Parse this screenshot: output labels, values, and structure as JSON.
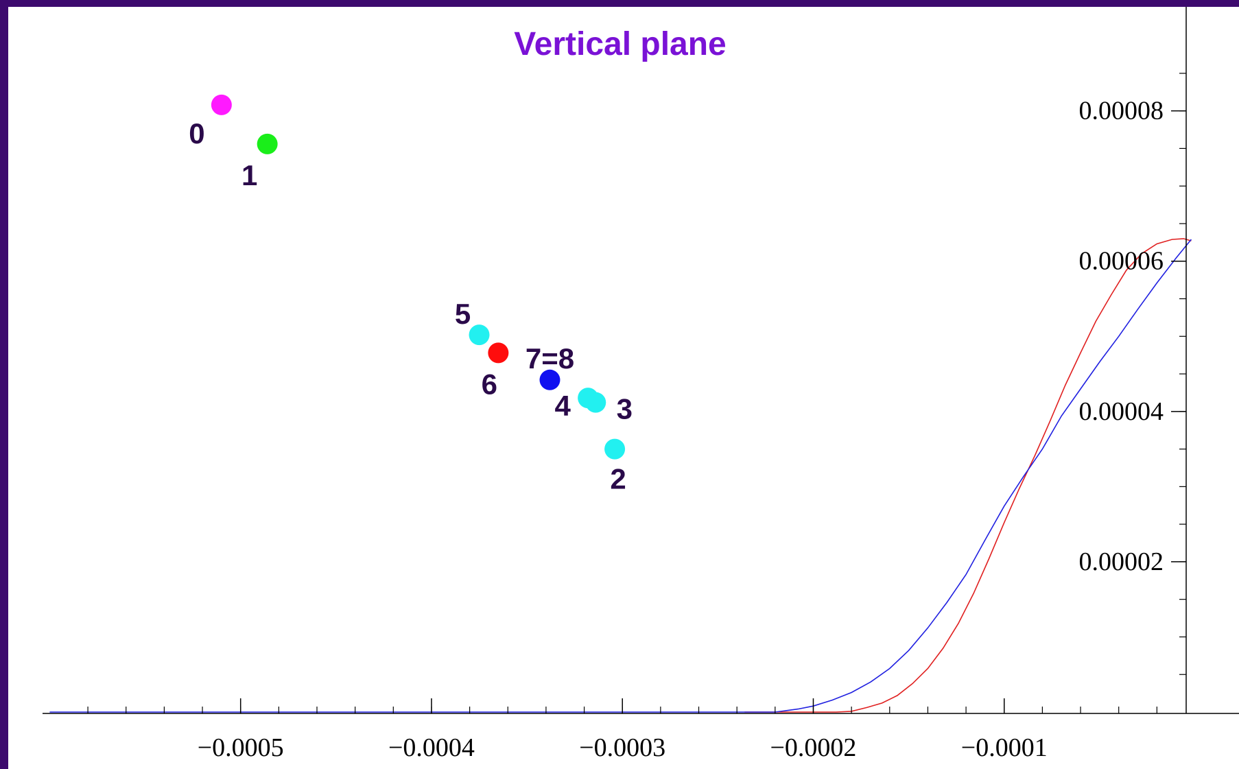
{
  "chart_data": {
    "type": "scatter",
    "title": "Vertical plane",
    "xlabel": "",
    "ylabel": "",
    "xlim": [
      -0.000598,
      -0.0
    ],
    "ylim": [
      0,
      8.8e-05
    ],
    "x_ticks": [
      {
        "value": -0.0005,
        "label": "−0.0005"
      },
      {
        "value": -0.0004,
        "label": "−0.0004"
      },
      {
        "value": -0.0003,
        "label": "−0.0003"
      },
      {
        "value": -0.0002,
        "label": "−0.0002"
      },
      {
        "value": -0.0001,
        "label": "−0.0001"
      }
    ],
    "y_ticks": [
      {
        "value": 2e-05,
        "label": "0.00002"
      },
      {
        "value": 4e-05,
        "label": "0.00004"
      },
      {
        "value": 6e-05,
        "label": "0.00006"
      },
      {
        "value": 8e-05,
        "label": "0.00008"
      }
    ],
    "points": [
      {
        "label": "0",
        "x": -0.00051,
        "y": 8.08e-05,
        "color": "#ff1aff",
        "label_dx": -36,
        "label_dy": 56
      },
      {
        "label": "1",
        "x": -0.000486,
        "y": 7.56e-05,
        "color": "#1aee1a",
        "label_dx": -26,
        "label_dy": 60
      },
      {
        "label": "2",
        "x": -0.000304,
        "y": 3.5e-05,
        "color": "#22f0f0",
        "label_dx": 5,
        "label_dy": 58
      },
      {
        "label": "3",
        "x": -0.000314,
        "y": 4.12e-05,
        "color": "#22f0f0",
        "label_dx": 42,
        "label_dy": 24
      },
      {
        "label": "4",
        "x": -0.000318,
        "y": 4.18e-05,
        "color": "#22f0f0",
        "label_dx": -37,
        "label_dy": 26
      },
      {
        "label": "5",
        "x": -0.000375,
        "y": 5.02e-05,
        "color": "#22f0f0",
        "label_dx": -24,
        "label_dy": -16
      },
      {
        "label": "6",
        "x": -0.000365,
        "y": 4.78e-05,
        "color": "#ff0d0d",
        "label_dx": -13,
        "label_dy": 60
      },
      {
        "label": "7=8",
        "x": -0.000338,
        "y": 4.42e-05,
        "color": "#1010f0",
        "label_dx": 0,
        "label_dy": -17
      }
    ],
    "series": [
      {
        "color": "#e02020",
        "x": [
          -0.000236,
          -0.000228,
          -0.00022,
          -0.000212,
          -0.000204,
          -0.000196,
          -0.000188,
          -0.00018,
          -0.000172,
          -0.000164,
          -0.000156,
          -0.000148,
          -0.00014,
          -0.000132,
          -0.000124,
          -0.000116,
          -0.000108,
          -0.0001,
          -9.2e-05,
          -8.4e-05,
          -7.6e-05,
          -6.8e-05,
          -6e-05,
          -5.2e-05,
          -4.4e-05,
          -3.6e-05,
          -2.8e-05,
          -2e-05,
          -1.2e-05,
          -6e-06,
          -2e-06
        ],
        "y": [
          0,
          0,
          0,
          0,
          0,
          0,
          0,
          1e-07,
          6e-07,
          1.2e-06,
          2.2e-06,
          3.8e-06,
          5.8e-06,
          8.5e-06,
          1.18e-05,
          1.58e-05,
          2.04e-05,
          2.52e-05,
          2.98e-05,
          3.41e-05,
          3.87e-05,
          4.35e-05,
          4.78e-05,
          5.2e-05,
          5.55e-05,
          5.88e-05,
          6.1e-05,
          6.23e-05,
          6.29e-05,
          6.3e-05,
          6.27e-05
        ]
      },
      {
        "color": "#2020e0",
        "x": [
          -0.0006,
          -0.0005,
          -0.0004,
          -0.0003,
          -0.00025,
          -0.00024,
          -0.000232,
          -0.000226,
          -0.00022,
          -0.000214,
          -0.000208,
          -0.0002,
          -0.00019,
          -0.00018,
          -0.00017,
          -0.00016,
          -0.00015,
          -0.00014,
          -0.00013,
          -0.00012,
          -0.00011,
          -0.0001,
          -9e-05,
          -8e-05,
          -7e-05,
          -6e-05,
          -5e-05,
          -4e-05,
          -3e-05,
          -2e-05,
          -1e-05,
          -2e-06
        ],
        "y": [
          0,
          0,
          0,
          0,
          0,
          0,
          0,
          0,
          0,
          2e-07,
          4e-07,
          8e-07,
          1.6e-06,
          2.6e-06,
          4e-06,
          5.8e-06,
          8.2e-06,
          1.12e-05,
          1.46e-05,
          1.83e-05,
          2.29e-05,
          2.74e-05,
          3.13e-05,
          3.5e-05,
          3.94e-05,
          4.3e-05,
          4.66e-05,
          5e-05,
          5.36e-05,
          5.71e-05,
          6.04e-05,
          6.29e-05
        ]
      }
    ]
  }
}
